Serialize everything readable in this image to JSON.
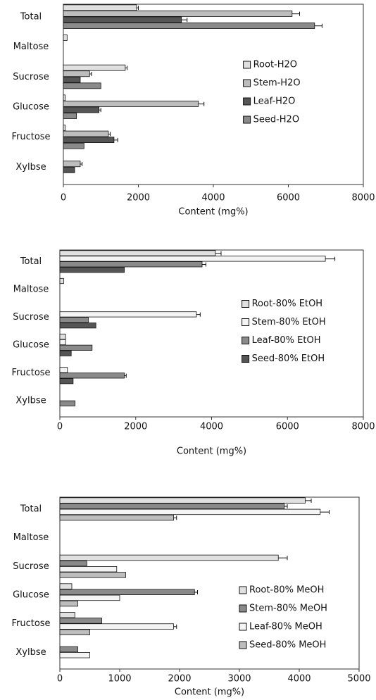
{
  "chart_data": [
    {
      "type": "bar",
      "orientation": "horizontal",
      "categories": [
        "Total",
        "Maltose",
        "Sucrose",
        "Glucose",
        "Fructose",
        "Xylbse"
      ],
      "series": [
        {
          "name": "Root-H2O",
          "color": "#e0e0e0",
          "values": [
            1950,
            100,
            1650,
            50,
            50,
            0
          ],
          "errors": [
            50,
            0,
            50,
            0,
            0,
            0
          ]
        },
        {
          "name": "Stem-H2O",
          "color": "#bdbdbd",
          "values": [
            6100,
            0,
            700,
            3600,
            1200,
            450
          ],
          "errors": [
            200,
            0,
            50,
            150,
            50,
            50
          ]
        },
        {
          "name": "Leaf-H2O",
          "color": "#555555",
          "values": [
            3150,
            0,
            450,
            950,
            1350,
            300
          ],
          "errors": [
            150,
            0,
            0,
            50,
            100,
            0
          ]
        },
        {
          "name": "Seed-H2O",
          "color": "#8a8a8a",
          "values": [
            6700,
            0,
            1000,
            350,
            550,
            0
          ],
          "errors": [
            200,
            0,
            0,
            0,
            0,
            0
          ]
        }
      ],
      "xlim": [
        0,
        8000
      ],
      "xticks": [
        0,
        2000,
        4000,
        6000,
        8000
      ],
      "xlabel": "Content (mg%)",
      "legend": "right"
    },
    {
      "type": "bar",
      "orientation": "horizontal",
      "categories": [
        "Total",
        "Maltose",
        "Sucrose",
        "Glucose",
        "Fructose",
        "Xylbse"
      ],
      "series": [
        {
          "name": "Root-80% EtOH",
          "color": "#e0e0e0",
          "values": [
            4100,
            100,
            0,
            150,
            0,
            0
          ],
          "errors": [
            150,
            0,
            0,
            0,
            0,
            0
          ]
        },
        {
          "name": "Stem-80% EtOH",
          "color": "#f4f4f4",
          "values": [
            7000,
            0,
            3600,
            150,
            200,
            0
          ],
          "errors": [
            250,
            0,
            100,
            0,
            0,
            0
          ]
        },
        {
          "name": "Leaf-80% EtOH",
          "color": "#8a8a8a",
          "values": [
            3750,
            0,
            750,
            850,
            1700,
            400
          ],
          "errors": [
            100,
            0,
            0,
            0,
            50,
            0
          ]
        },
        {
          "name": "Seed-80% EtOH",
          "color": "#555555",
          "values": [
            1700,
            0,
            950,
            300,
            350,
            0
          ],
          "errors": [
            0,
            0,
            0,
            0,
            0,
            0
          ]
        }
      ],
      "xlim": [
        0,
        8000
      ],
      "xticks": [
        0,
        2000,
        4000,
        6000,
        8000
      ],
      "xlabel": "Content (mg%)",
      "legend": "right"
    },
    {
      "type": "bar",
      "orientation": "horizontal",
      "categories": [
        "Total",
        "Maltose",
        "Sucrose",
        "Glucose",
        "Fructose",
        "Xylbse"
      ],
      "series": [
        {
          "name": "Root-80% MeOH",
          "color": "#e0e0e0",
          "values": [
            4100,
            0,
            3650,
            200,
            250,
            0
          ],
          "errors": [
            100,
            0,
            150,
            0,
            0,
            0
          ]
        },
        {
          "name": "Stem-80% MeOH",
          "color": "#8a8a8a",
          "values": [
            3750,
            0,
            450,
            2250,
            700,
            300
          ],
          "errors": [
            50,
            0,
            0,
            50,
            0,
            0
          ]
        },
        {
          "name": "Leaf-80% MeOH",
          "color": "#f4f4f4",
          "values": [
            4350,
            0,
            950,
            1000,
            1900,
            500
          ],
          "errors": [
            150,
            0,
            0,
            0,
            50,
            0
          ]
        },
        {
          "name": "Seed-80% MeOH",
          "color": "#bdbdbd",
          "values": [
            1900,
            0,
            1100,
            300,
            500,
            0
          ],
          "errors": [
            50,
            0,
            0,
            0,
            0,
            0
          ]
        }
      ],
      "xlim": [
        0,
        5000
      ],
      "xticks": [
        0,
        1000,
        2000,
        3000,
        4000,
        5000
      ],
      "xlabel": "Content (mg%)",
      "legend": "lower right"
    }
  ]
}
